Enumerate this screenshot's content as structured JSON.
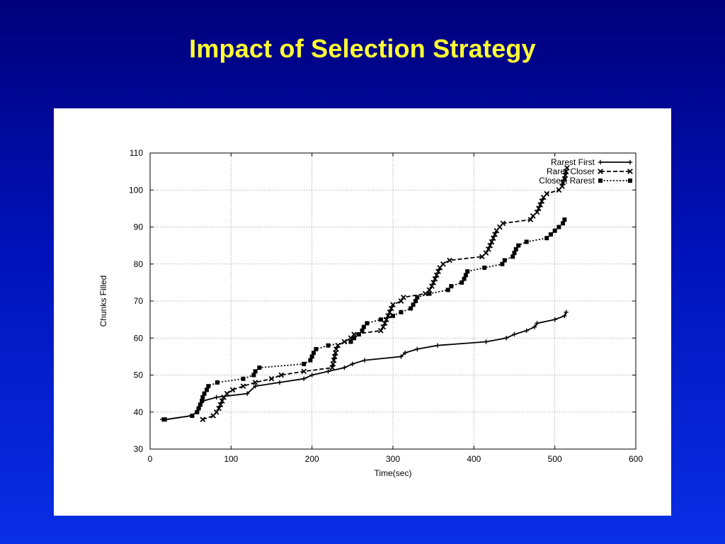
{
  "slide": {
    "title": "Impact of Selection Strategy"
  },
  "chart_data": {
    "type": "line",
    "title": "",
    "xlabel": "Time(sec)",
    "ylabel": "Chunks Filled",
    "xlim": [
      0,
      600
    ],
    "ylim": [
      30,
      110
    ],
    "xticks": [
      0,
      100,
      200,
      300,
      400,
      500,
      600
    ],
    "yticks": [
      30,
      40,
      50,
      60,
      70,
      80,
      90,
      100,
      110
    ],
    "grid": true,
    "legend_position": "top-right",
    "series": [
      {
        "name": "Rarest First",
        "style": "solid",
        "marker": "plus",
        "points": [
          [
            15,
            38
          ],
          [
            20,
            38
          ],
          [
            50,
            39
          ],
          [
            58,
            40
          ],
          [
            60,
            41
          ],
          [
            62,
            42
          ],
          [
            65,
            43
          ],
          [
            82,
            44
          ],
          [
            120,
            45
          ],
          [
            130,
            47
          ],
          [
            160,
            48
          ],
          [
            190,
            49
          ],
          [
            200,
            50
          ],
          [
            220,
            51
          ],
          [
            240,
            52
          ],
          [
            250,
            53
          ],
          [
            265,
            54
          ],
          [
            310,
            55
          ],
          [
            315,
            56
          ],
          [
            330,
            57
          ],
          [
            355,
            58
          ],
          [
            415,
            59
          ],
          [
            440,
            60
          ],
          [
            450,
            61
          ],
          [
            465,
            62
          ],
          [
            475,
            63
          ],
          [
            478,
            64
          ],
          [
            500,
            65
          ],
          [
            512,
            66
          ],
          [
            514,
            67
          ]
        ]
      },
      {
        "name": "Rarer Closer",
        "style": "dashed",
        "marker": "x",
        "points": [
          [
            65,
            38
          ],
          [
            78,
            39
          ],
          [
            82,
            40
          ],
          [
            85,
            41
          ],
          [
            87,
            42
          ],
          [
            89,
            43
          ],
          [
            91,
            44
          ],
          [
            95,
            45
          ],
          [
            102,
            46
          ],
          [
            115,
            47
          ],
          [
            130,
            48
          ],
          [
            150,
            49
          ],
          [
            162,
            50
          ],
          [
            190,
            51
          ],
          [
            225,
            52
          ],
          [
            226,
            53
          ],
          [
            227,
            54
          ],
          [
            228,
            55
          ],
          [
            229,
            56
          ],
          [
            230,
            57
          ],
          [
            232,
            58
          ],
          [
            240,
            59
          ],
          [
            248,
            60
          ],
          [
            252,
            61
          ],
          [
            285,
            62
          ],
          [
            288,
            63
          ],
          [
            290,
            64
          ],
          [
            292,
            65
          ],
          [
            294,
            66
          ],
          [
            296,
            67
          ],
          [
            298,
            68
          ],
          [
            300,
            69
          ],
          [
            310,
            70
          ],
          [
            313,
            71
          ],
          [
            340,
            72
          ],
          [
            345,
            73
          ],
          [
            348,
            74
          ],
          [
            350,
            75
          ],
          [
            352,
            76
          ],
          [
            354,
            77
          ],
          [
            356,
            78
          ],
          [
            358,
            79
          ],
          [
            362,
            80
          ],
          [
            370,
            81
          ],
          [
            410,
            82
          ],
          [
            415,
            83
          ],
          [
            418,
            84
          ],
          [
            420,
            85
          ],
          [
            422,
            86
          ],
          [
            424,
            87
          ],
          [
            426,
            88
          ],
          [
            428,
            89
          ],
          [
            432,
            90
          ],
          [
            436,
            91
          ],
          [
            470,
            92
          ],
          [
            473,
            93
          ],
          [
            478,
            94
          ],
          [
            480,
            95
          ],
          [
            482,
            96
          ],
          [
            484,
            97
          ],
          [
            486,
            98
          ],
          [
            490,
            99
          ],
          [
            505,
            100
          ],
          [
            509,
            101
          ],
          [
            510,
            102
          ],
          [
            512,
            103
          ],
          [
            513,
            104
          ],
          [
            514,
            105
          ],
          [
            515,
            106
          ]
        ]
      },
      {
        "name": "Closest Rarest",
        "style": "dotted",
        "marker": "square",
        "points": [
          [
            18,
            38
          ],
          [
            52,
            39
          ],
          [
            58,
            40
          ],
          [
            60,
            41
          ],
          [
            62,
            42
          ],
          [
            64,
            43
          ],
          [
            65,
            44
          ],
          [
            67,
            45
          ],
          [
            70,
            46
          ],
          [
            72,
            47
          ],
          [
            83,
            48
          ],
          [
            115,
            49
          ],
          [
            128,
            50
          ],
          [
            130,
            51
          ],
          [
            135,
            52
          ],
          [
            190,
            53
          ],
          [
            198,
            54
          ],
          [
            200,
            55
          ],
          [
            202,
            56
          ],
          [
            205,
            57
          ],
          [
            220,
            58
          ],
          [
            248,
            59
          ],
          [
            252,
            60
          ],
          [
            258,
            61
          ],
          [
            262,
            62
          ],
          [
            264,
            63
          ],
          [
            268,
            64
          ],
          [
            285,
            65
          ],
          [
            300,
            66
          ],
          [
            310,
            67
          ],
          [
            322,
            68
          ],
          [
            325,
            69
          ],
          [
            328,
            70
          ],
          [
            330,
            71
          ],
          [
            345,
            72
          ],
          [
            368,
            73
          ],
          [
            372,
            74
          ],
          [
            385,
            75
          ],
          [
            388,
            76
          ],
          [
            390,
            77
          ],
          [
            392,
            78
          ],
          [
            413,
            79
          ],
          [
            435,
            80
          ],
          [
            438,
            81
          ],
          [
            448,
            82
          ],
          [
            450,
            83
          ],
          [
            452,
            84
          ],
          [
            455,
            85
          ],
          [
            465,
            86
          ],
          [
            490,
            87
          ],
          [
            495,
            88
          ],
          [
            500,
            89
          ],
          [
            505,
            90
          ],
          [
            510,
            91
          ],
          [
            512,
            92
          ]
        ]
      }
    ]
  }
}
